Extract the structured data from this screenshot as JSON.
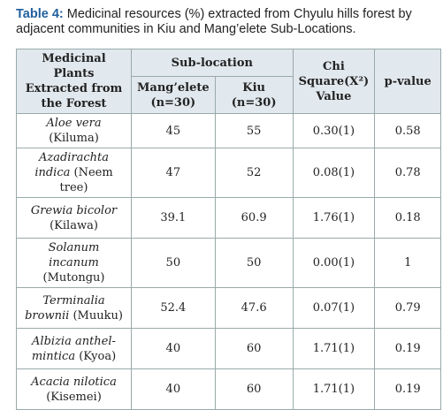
{
  "caption": {
    "label": "Table 4:",
    "text": "Medicinal resources (%) extracted from Chyulu hills forest by adjacent communities in Kiu and Mang’elete Sub-Locations."
  },
  "table": {
    "header": {
      "plants": "Medicinal Plants Extracted from the Forest",
      "group": "Sub-location",
      "sub": [
        "Mang’elete (n=30)",
        "Kiu (n=30)"
      ],
      "chi": "Chi Square(X²) Value",
      "p": "p-value"
    },
    "rows": [
      [
        {
          "scientific": "Aloe vera",
          "common": "(Kiluma)"
        },
        45,
        55,
        "0.30(1)",
        0.58
      ],
      [
        {
          "scientific": "Azadirachta indica",
          "common": "(Neem tree)"
        },
        47,
        52,
        "0.08(1)",
        0.78
      ],
      [
        {
          "scientific": "Grewia bicolor",
          "common": "(Kilawa)"
        },
        39.1,
        60.9,
        "1.76(1)",
        0.18
      ],
      [
        {
          "scientific": "Solanum incanum",
          "common": "(Mutongu)"
        },
        50,
        50,
        "0.00(1)",
        1
      ],
      [
        {
          "scientific": "Terminalia brownii",
          "common": "(Muuku)"
        },
        52.4,
        47.6,
        "0.07(1)",
        0.79
      ],
      [
        {
          "scientific": "Albizia anthel-mintica",
          "common": "(Kyoa)"
        },
        40,
        60,
        "1.71(1)",
        0.19
      ],
      [
        {
          "scientific": "Acacia nilotica",
          "common": "(Kisemei)"
        },
        40,
        60,
        "1.71(1)",
        0.19
      ]
    ]
  }
}
